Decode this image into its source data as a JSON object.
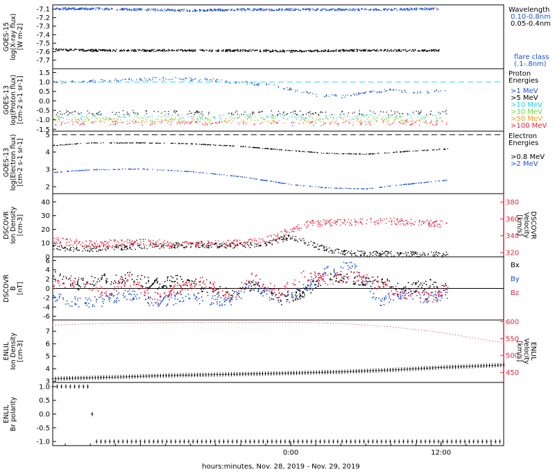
{
  "x_axis": {
    "ticks": [
      "0:00",
      "12:00"
    ],
    "label": "hours:minutes, Nov. 28, 2019 - Nov. 29, 2019"
  },
  "colors": {
    "blue": "#1a4fd6",
    "black": "#000000",
    "red": "#e8203a",
    "cyan": "#22cfe3",
    "green": "#66e32a",
    "orange": "#f09a1e",
    "dashed_cyan": "#2fd2e8"
  },
  "panels": {
    "xray": {
      "ylabel": [
        "GOES-15",
        "log(X-ray flux)",
        "[W m-2]"
      ],
      "yticks": [
        "-7.1",
        "-7.2",
        "-7.3",
        "-7.4",
        "-7.5",
        "-7.6",
        "-7.7"
      ],
      "legend_title": [
        "Wavelength"
      ],
      "legend_items": [
        {
          "text": "0.10-0.8nm",
          "color": "#1a4fd6"
        },
        {
          "text": "0.05-0.4nm",
          "color": "#000000"
        }
      ],
      "legend_note": [
        "flare class",
        "(.1-.8nm)"
      ]
    },
    "proton": {
      "ylabel": [
        "GOES-13",
        "log(Proton flux)",
        "[cm-2 s-1 sr-1]"
      ],
      "yticks": [
        "1.5",
        "1.0",
        "0.5",
        "0.0",
        "-0.5",
        "-1.0",
        "-1.5"
      ],
      "legend_title": [
        "Proton",
        "Energies"
      ],
      "legend_items": [
        {
          "text": ">1 MeV",
          "color": "#1a4fd6"
        },
        {
          "text": ">5 MeV",
          "color": "#000000"
        },
        {
          "text": ">10 MeV",
          "color": "#22cfe3"
        },
        {
          "text": ">30 MeV",
          "color": "#66e32a"
        },
        {
          "text": ">50 MeV",
          "color": "#f09a1e"
        },
        {
          "text": ">100 MeV",
          "color": "#e8203a"
        }
      ]
    },
    "electron": {
      "ylabel": [
        "GOES-13",
        "log(Electron flux)",
        "[cm-2 s-1 sr-1]"
      ],
      "yticks": [
        "5",
        "4",
        "3",
        "2"
      ],
      "legend_title": [
        "Electron",
        "Energies"
      ],
      "legend_items": [
        {
          "text": ">0.8 MeV",
          "color": "#000000"
        },
        {
          "text": ">2 MeV",
          "color": "#1a4fd6"
        }
      ]
    },
    "dscovr_plasma": {
      "ylabel": [
        "DSCOVR",
        "Ion Density",
        "[cm-3]"
      ],
      "yticks": [
        "40",
        "30",
        "20",
        "10",
        "0"
      ],
      "ylabel_right": [
        "DSCOVR",
        "Velocity",
        "[km/s]"
      ],
      "yticks_right": [
        "380",
        "360",
        "340",
        "320"
      ]
    },
    "dscovr_b": {
      "ylabel": [
        "DSCOVR",
        "B",
        "[nT]"
      ],
      "yticks": [
        "6",
        "4",
        "2",
        "0",
        "-2",
        "-4",
        "-6"
      ],
      "legend_items": [
        {
          "text": "Bx",
          "color": "#000000"
        },
        {
          "text": "By",
          "color": "#1a4fd6"
        },
        {
          "text": "Bz",
          "color": "#e8203a"
        }
      ]
    },
    "enlil": {
      "ylabel": [
        "ENLIL",
        "Ion Density",
        "[cm-3]"
      ],
      "yticks": [
        "7",
        "6",
        "5",
        "4",
        "3"
      ],
      "ylabel_right": [
        "ENLIL",
        "Velocity",
        "[km/s]"
      ],
      "yticks_right": [
        "600",
        "550",
        "500",
        "450"
      ]
    },
    "enlil_pol": {
      "ylabel": [
        "ENLIL",
        "Br polarity"
      ],
      "yticks": [
        "1.0",
        "0.5",
        "0.0",
        "-0.5",
        "-1.0"
      ]
    }
  },
  "chart_data": [
    {
      "type": "scatter",
      "x_unit": "hours from 00:00 UT Nov. 29, 2019",
      "xlim": [
        -19.0,
        17.0
      ],
      "ylim": [
        -7.8,
        -7.05
      ],
      "series": [
        {
          "name": "0.10-0.8nm",
          "x": [
            -19.0,
            -16.0,
            -12.0,
            -8.0,
            -4.0,
            0.0,
            4.0,
            8.0,
            11.8
          ],
          "y": [
            -7.09,
            -7.09,
            -7.1,
            -7.11,
            -7.1,
            -7.1,
            -7.1,
            -7.1,
            -7.09
          ]
        },
        {
          "name": "0.05-0.4nm",
          "x": [
            -19.0,
            -16.0,
            -12.0,
            -8.0,
            -4.0,
            0.0,
            4.0,
            8.0,
            11.8
          ],
          "y": [
            -7.57,
            -7.58,
            -7.58,
            -7.58,
            -7.58,
            -7.59,
            -7.58,
            -7.58,
            -7.58
          ]
        }
      ]
    },
    {
      "type": "scatter",
      "xlim": [
        -19.0,
        17.0
      ],
      "ylim": [
        -1.6,
        1.7
      ],
      "series": [
        {
          "name": ">1 MeV",
          "x": [
            -19.0,
            -16.0,
            -13.0,
            -10.0,
            -7.0,
            -4.0,
            -1.0,
            0.5,
            2.0,
            4.0,
            6.0,
            8.0,
            10.0,
            12.5
          ],
          "y": [
            1.0,
            1.05,
            1.15,
            1.2,
            1.15,
            1.0,
            0.8,
            0.55,
            0.35,
            0.25,
            0.45,
            0.6,
            0.45,
            0.6
          ]
        },
        {
          "name": ">5 MeV",
          "x": [
            -19.0,
            -12.0,
            -4.0,
            4.0,
            12.5
          ],
          "y": [
            -0.6,
            -0.6,
            -0.62,
            -0.62,
            -0.6
          ]
        },
        {
          "name": ">10 MeV",
          "x": [
            -19.0,
            -12.0,
            -4.0,
            4.0,
            12.5
          ],
          "y": [
            -0.78,
            -0.78,
            -0.8,
            -0.8,
            -0.78
          ]
        },
        {
          "name": ">30 MeV",
          "x": [
            -19.0,
            -12.0,
            -4.0,
            4.0,
            12.5
          ],
          "y": [
            -0.9,
            -0.9,
            -0.92,
            -0.92,
            -0.9
          ]
        },
        {
          "name": ">50 MeV",
          "x": [
            -19.0,
            -12.0,
            -4.0,
            4.0,
            12.5
          ],
          "y": [
            -1.02,
            -1.02,
            -1.03,
            -1.03,
            -1.02
          ]
        },
        {
          "name": ">100 MeV",
          "x": [
            -19.0,
            -12.0,
            -4.0,
            4.0,
            12.5
          ],
          "y": [
            -1.15,
            -1.15,
            -1.16,
            -1.16,
            -1.15
          ]
        }
      ],
      "reference_line": 1.0
    },
    {
      "type": "line",
      "xlim": [
        -19.0,
        17.0
      ],
      "ylim": [
        1.6,
        5.2
      ],
      "series": [
        {
          "name": ">0.8 MeV",
          "x": [
            -19.0,
            -16.0,
            -12.0,
            -8.0,
            -4.0,
            0.0,
            3.0,
            6.0,
            9.0,
            12.5
          ],
          "y": [
            4.4,
            4.55,
            4.55,
            4.5,
            4.35,
            4.1,
            3.95,
            3.9,
            4.05,
            4.2
          ]
        },
        {
          "name": ">2 MeV",
          "x": [
            -19.0,
            -16.0,
            -12.0,
            -8.0,
            -4.0,
            0.0,
            3.0,
            6.0,
            9.0,
            12.5
          ],
          "y": [
            2.85,
            3.0,
            3.05,
            2.9,
            2.6,
            2.15,
            1.95,
            1.9,
            2.15,
            2.4
          ]
        }
      ],
      "reference_line": 5.0
    },
    {
      "type": "scatter",
      "xlim": [
        -19.0,
        17.0
      ],
      "ylim": [
        0.0,
        46.0
      ],
      "y2lim": [
        315.0,
        390.0
      ],
      "series": [
        {
          "name": "Ion Density",
          "axis": "left",
          "x": [
            -19.0,
            -16.0,
            -12.0,
            -8.0,
            -4.0,
            -2.0,
            0.0,
            1.5,
            3.0,
            5.0,
            8.0,
            12.5
          ],
          "y": [
            7.0,
            6.0,
            8.0,
            9.0,
            8.5,
            10.0,
            15.0,
            10.0,
            5.0,
            3.0,
            2.5,
            2.0
          ]
        },
        {
          "name": "Velocity",
          "axis": "right",
          "x": [
            -19.0,
            -16.0,
            -12.0,
            -8.0,
            -4.0,
            -2.0,
            0.0,
            1.5,
            3.0,
            5.0,
            8.0,
            12.5
          ],
          "y": [
            335.0,
            331.0,
            333.0,
            330.0,
            332.0,
            335.0,
            348.0,
            355.0,
            356.0,
            357.0,
            358.0,
            354.0
          ]
        }
      ]
    },
    {
      "type": "scatter",
      "xlim": [
        -19.0,
        17.0
      ],
      "ylim": [
        -6.8,
        6.8
      ],
      "series": [
        {
          "name": "Bx",
          "x": [
            -19.0,
            -17.0,
            -15.0,
            -13.0,
            -11.0,
            -9.0,
            -7.0,
            -5.0,
            -3.0,
            -1.0,
            1.0,
            3.0,
            5.0,
            7.0,
            9.0,
            11.0,
            12.5
          ],
          "y": [
            3.0,
            1.0,
            2.0,
            2.5,
            1.0,
            2.0,
            0.5,
            -1.0,
            1.0,
            -2.0,
            -1.0,
            3.0,
            2.0,
            1.5,
            0.0,
            1.0,
            0.0
          ]
        },
        {
          "name": "By",
          "x": [
            -19.0,
            -17.0,
            -15.0,
            -13.0,
            -11.0,
            -9.0,
            -7.0,
            -5.0,
            -3.0,
            -1.0,
            1.0,
            3.0,
            5.0,
            7.0,
            9.0,
            11.0,
            12.5
          ],
          "y": [
            -2.0,
            -3.0,
            -2.5,
            -1.0,
            -3.0,
            -2.0,
            -2.0,
            -3.0,
            1.0,
            -3.0,
            0.0,
            4.0,
            5.0,
            -3.0,
            -1.0,
            -2.0,
            -1.0
          ]
        },
        {
          "name": "Bz",
          "x": [
            -19.0,
            -17.0,
            -15.0,
            -13.0,
            -11.0,
            -9.0,
            -7.0,
            -5.0,
            -3.0,
            -1.0,
            1.0,
            3.0,
            5.0,
            7.0,
            9.0,
            11.0,
            12.5
          ],
          "y": [
            1.0,
            2.0,
            -1.0,
            2.0,
            -2.0,
            0.0,
            2.0,
            -2.0,
            2.5,
            -1.0,
            3.0,
            2.0,
            3.0,
            1.0,
            -1.0,
            -2.0,
            0.0
          ]
        }
      ]
    },
    {
      "type": "scatter",
      "xlim": [
        -19.0,
        17.0
      ],
      "ylim": [
        2.9,
        7.9
      ],
      "y2lim": [
        420.0,
        605.0
      ],
      "series": [
        {
          "name": "Ion Density",
          "axis": "left",
          "x": [
            -19.0,
            -15.0,
            -10.0,
            -5.0,
            0.0,
            4.0,
            8.0,
            12.0,
            17.0
          ],
          "y": [
            3.2,
            3.3,
            3.45,
            3.55,
            3.65,
            3.75,
            3.9,
            4.1,
            4.3
          ]
        },
        {
          "name": "Velocity",
          "axis": "right",
          "x": [
            -19.0,
            -15.0,
            -10.0,
            -5.0,
            0.0,
            4.0,
            8.0,
            12.0,
            17.0
          ],
          "y": [
            590.0,
            595.0,
            597.0,
            598.0,
            598.0,
            595.0,
            585.0,
            568.0,
            537.0
          ]
        }
      ]
    },
    {
      "type": "scatter",
      "xlim": [
        -19.0,
        17.0
      ],
      "ylim": [
        -1.15,
        1.15
      ],
      "series": [
        {
          "name": "Br polarity",
          "x": [
            -19.0,
            -17.5,
            -16.2,
            -15.5,
            -10.0,
            0.0,
            10.0,
            17.0
          ],
          "y": [
            1.0,
            1.0,
            1.0,
            -1.0,
            -1.0,
            -1.0,
            -1.0,
            -1.0
          ]
        }
      ]
    }
  ]
}
